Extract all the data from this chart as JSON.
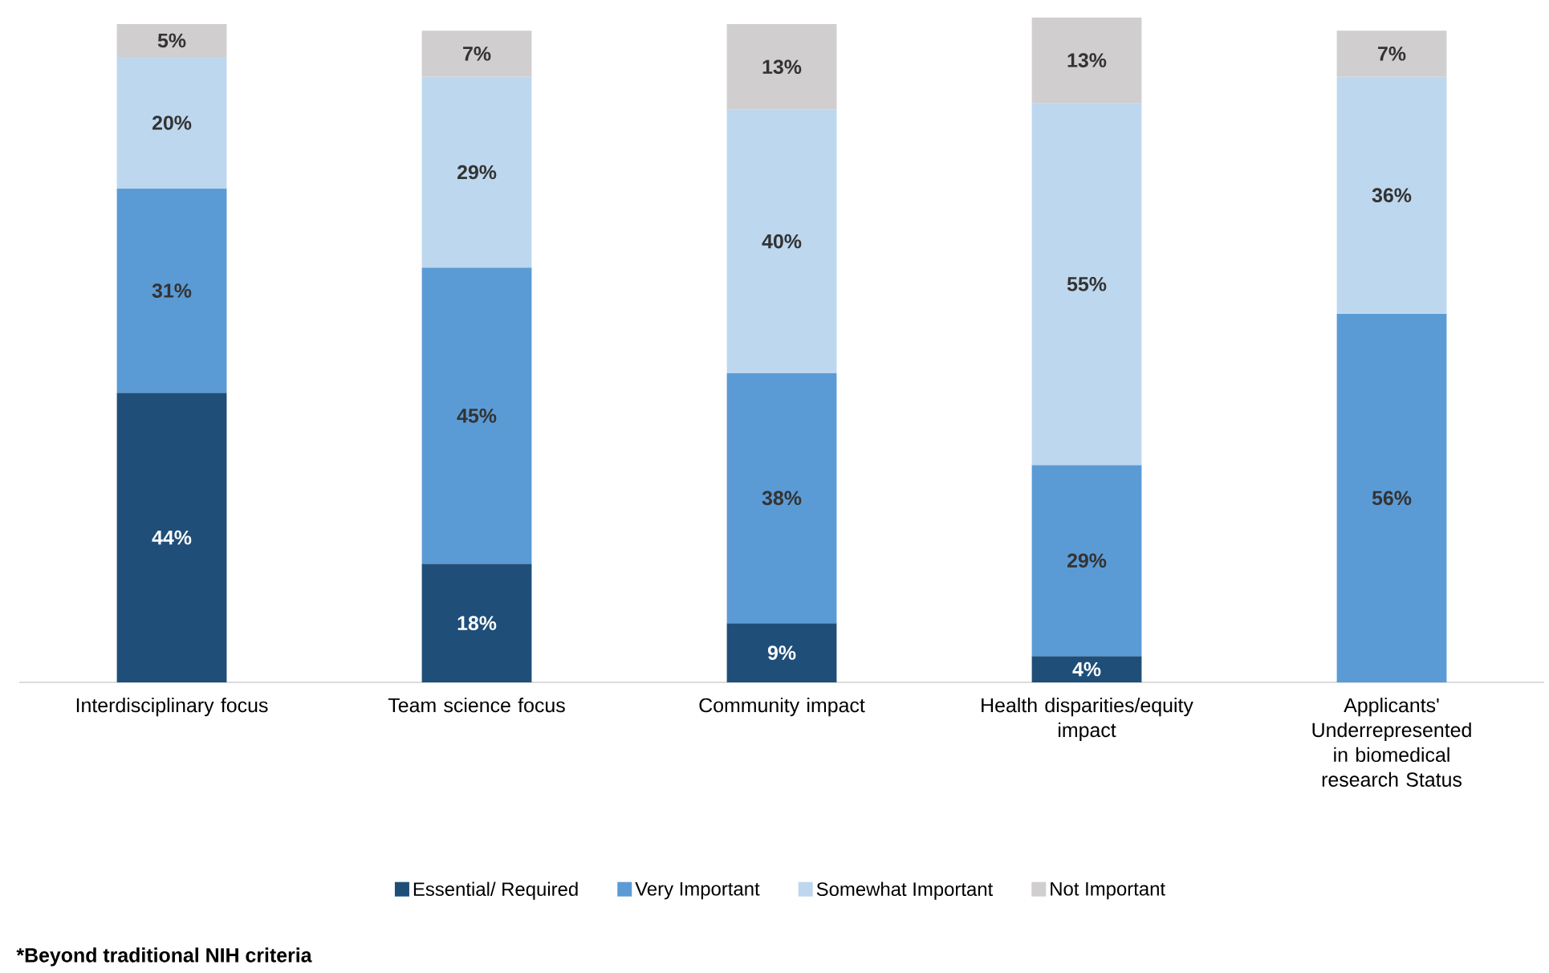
{
  "chart_data": {
    "type": "bar",
    "stacked": true,
    "categories": [
      "Interdisciplinary focus",
      "Team science focus",
      "Community impact",
      "Health disparities/equity impact",
      "Applicants' Underrepresented in biomedical research Status"
    ],
    "series": [
      {
        "name": "Essential/ Required",
        "color": "#1f4e79",
        "values": [
          44,
          18,
          9,
          4,
          null
        ],
        "value_labels": [
          "44%",
          "18%",
          "9%",
          "4%",
          null
        ]
      },
      {
        "name": "Very Important",
        "color": "#5b9bd5",
        "values": [
          31,
          45,
          38,
          29,
          56
        ],
        "value_labels": [
          "31%",
          "45%",
          "38%",
          "29%",
          "56%"
        ]
      },
      {
        "name": "Somewhat Important",
        "color": "#bdd7ee",
        "values": [
          20,
          29,
          40,
          55,
          36
        ],
        "value_labels": [
          "20%",
          "29%",
          "40%",
          "55%",
          "36%"
        ]
      },
      {
        "name": "Not Important",
        "color": "#d0cece",
        "values": [
          5,
          7,
          13,
          13,
          7
        ],
        "value_labels": [
          "5%",
          "7%",
          "13%",
          "13%",
          "7%"
        ]
      }
    ],
    "legend": "bottom",
    "annotations": [
      "*Beyond traditional NIH criteria"
    ]
  }
}
